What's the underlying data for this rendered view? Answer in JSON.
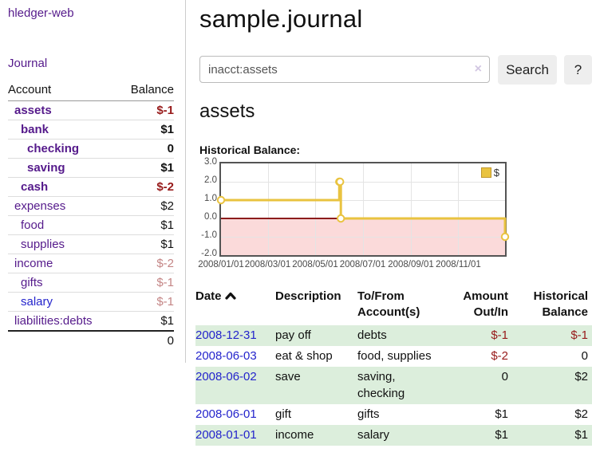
{
  "colors": {
    "purple": "#551a8b",
    "blue": "#2424cc",
    "neg-strong": "#971a1a",
    "neg-weak": "#c48585",
    "row-green": "#dceedc",
    "gold": "#e9c340",
    "pink": "#fbdada",
    "zero": "#8c1c1c",
    "btn": "#eeeeee"
  },
  "sidebar": {
    "brand": "hledger-web",
    "nav": {
      "journal": "Journal"
    },
    "accounts_table": {
      "headers": {
        "account": "Account",
        "balance": "Balance"
      },
      "rows": [
        {
          "name": "assets",
          "balance": "$-1",
          "row_class": "",
          "name_class": "d1 b",
          "balance_class": "neg-strong b"
        },
        {
          "name": "bank",
          "balance": "$1",
          "row_class": "",
          "name_class": "d2 b",
          "balance_class": "b"
        },
        {
          "name": "checking",
          "balance": "0",
          "row_class": "",
          "name_class": "d3 b",
          "balance_class": "b"
        },
        {
          "name": "saving",
          "balance": "$1",
          "row_class": "",
          "name_class": "d3 b",
          "balance_class": "b"
        },
        {
          "name": "cash",
          "balance": "$-2",
          "row_class": "",
          "name_class": "d2 b",
          "balance_class": "neg-strong b"
        },
        {
          "name": "expenses",
          "balance": "$2",
          "row_class": "",
          "name_class": "d1",
          "balance_class": ""
        },
        {
          "name": "food",
          "balance": "$1",
          "row_class": "",
          "name_class": "d2",
          "balance_class": ""
        },
        {
          "name": "supplies",
          "balance": "$1",
          "row_class": "",
          "name_class": "d2",
          "balance_class": ""
        },
        {
          "name": "income",
          "balance": "$-2",
          "row_class": "",
          "name_class": "d1",
          "balance_class": "neg-weak"
        },
        {
          "name": "gifts",
          "balance": "$-1",
          "row_class": "",
          "name_class": "d2",
          "balance_class": "neg-weak"
        },
        {
          "name": "salary",
          "balance": "$-1",
          "row_class": "",
          "name_class": "d2 link-blue",
          "balance_class": "neg-weak"
        },
        {
          "name": "liabilities:debts",
          "balance": "$1",
          "row_class": "",
          "name_class": "d1",
          "balance_class": ""
        }
      ],
      "total": "0"
    }
  },
  "main": {
    "title": "sample.journal",
    "search": {
      "value": "inacct:assets",
      "clear_icon": "×",
      "button_label": "Search",
      "help_label": "?"
    },
    "account_heading": "assets",
    "chart": {
      "heading": "Historical Balance:",
      "legend_label": "$",
      "chart_data": {
        "type": "line",
        "title": "Historical Balance",
        "x_range": [
          "2008-01-01",
          "2008-12-31"
        ],
        "ylim": [
          -2,
          3
        ],
        "y_ticks": [
          "3.0",
          "2.0",
          "1.0",
          "0.0",
          "-1.0",
          "-2.0"
        ],
        "x_ticks": [
          "2008/01/01",
          "2008/03/01",
          "2008/05/01",
          "2008/07/01",
          "2008/09/01",
          "2008/11/01"
        ],
        "series": [
          {
            "name": "$",
            "points": [
              [
                "2008-01-01",
                1
              ],
              [
                "2008-06-01",
                2
              ],
              [
                "2008-06-02",
                2
              ],
              [
                "2008-06-03",
                0
              ],
              [
                "2008-12-31",
                -1
              ]
            ]
          }
        ],
        "grid": true,
        "legend_position": "top-right",
        "negative_region_shaded": true
      }
    },
    "register": {
      "headers": {
        "date": "Date",
        "description": "Description",
        "accounts": "To/From Account(s)",
        "amount": "Amount Out/In",
        "balance": "Historical Balance"
      },
      "sort_icon": "caret-up",
      "rows": [
        {
          "date": "2008-12-31",
          "description": "pay off",
          "accounts": "debts",
          "amount": "$-1",
          "balance": "$-1",
          "amount_class": "neg",
          "balance_class": "neg"
        },
        {
          "date": "2008-06-03",
          "description": "eat & shop",
          "accounts": "food, supplies",
          "amount": "$-2",
          "balance": "0",
          "amount_class": "neg",
          "balance_class": ""
        },
        {
          "date": "2008-06-02",
          "description": "save",
          "accounts": "saving, checking",
          "amount": "0",
          "balance": "$2",
          "amount_class": "",
          "balance_class": ""
        },
        {
          "date": "2008-06-01",
          "description": "gift",
          "accounts": "gifts",
          "amount": "$1",
          "balance": "$2",
          "amount_class": "",
          "balance_class": ""
        },
        {
          "date": "2008-01-01",
          "description": "income",
          "accounts": "salary",
          "amount": "$1",
          "balance": "$1",
          "amount_class": "",
          "balance_class": ""
        }
      ]
    }
  }
}
